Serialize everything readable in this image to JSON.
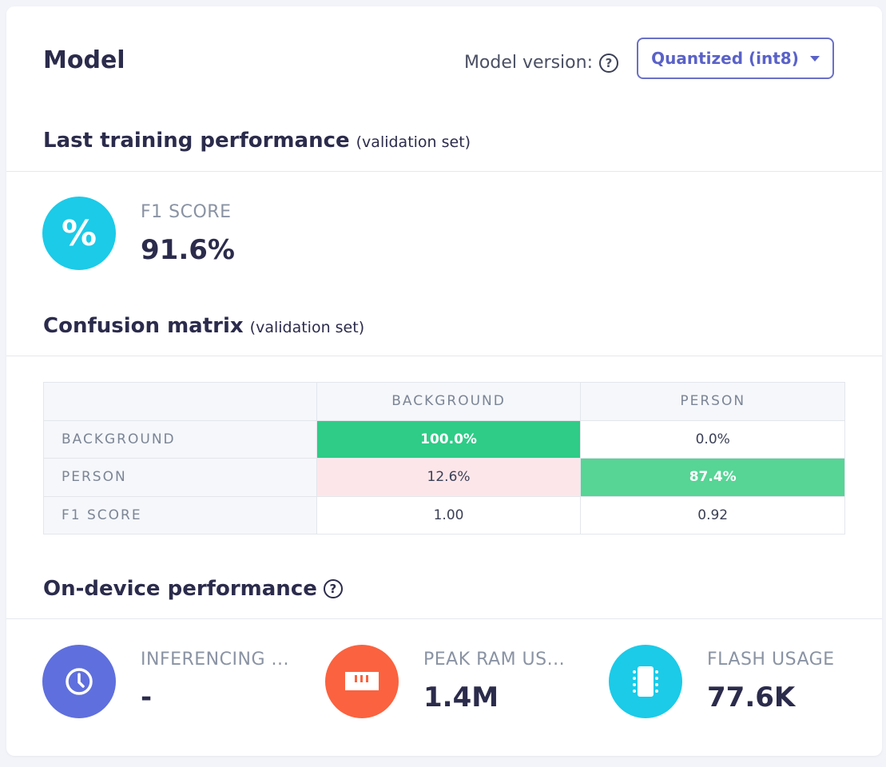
{
  "header": {
    "title": "Model",
    "version_label": "Model version:",
    "version_value": "Quantized (int8)"
  },
  "training": {
    "title": "Last training performance",
    "subtitle": "(validation set)",
    "metric_label": "F1 SCORE",
    "metric_value": "91.6%"
  },
  "confusion": {
    "title": "Confusion matrix",
    "subtitle": "(validation set)",
    "columns": [
      "BACKGROUND",
      "PERSON"
    ],
    "rows": [
      {
        "label": "BACKGROUND",
        "cells": [
          "100.0%",
          "0.0%"
        ]
      },
      {
        "label": "PERSON",
        "cells": [
          "12.6%",
          "87.4%"
        ]
      },
      {
        "label": "F1 SCORE",
        "cells": [
          "1.00",
          "0.92"
        ]
      }
    ]
  },
  "device": {
    "title": "On-device performance",
    "stats": [
      {
        "label": "INFERENCING ...",
        "value": "-",
        "icon": "clock-icon",
        "color": "#5f6fdd"
      },
      {
        "label": "PEAK RAM US...",
        "value": "1.4M",
        "icon": "ram-icon",
        "color": "#fb623f"
      },
      {
        "label": "FLASH USAGE",
        "value": "77.6K",
        "icon": "chip-icon",
        "color": "#1bcbe8"
      }
    ]
  }
}
